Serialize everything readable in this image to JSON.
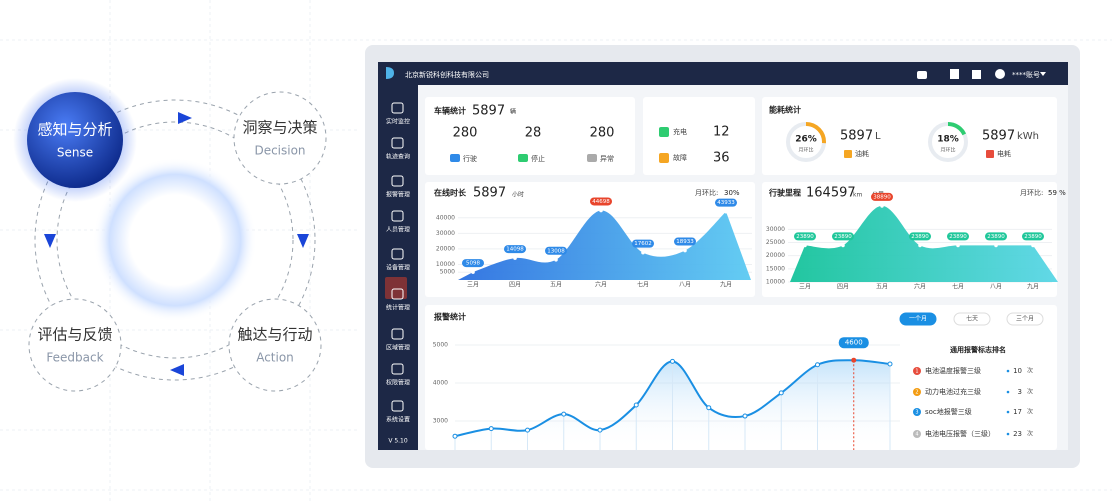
{
  "cycle": {
    "nodes": [
      {
        "label": "感知与分析",
        "sub": "Sense"
      },
      {
        "label": "洞察与决策",
        "sub": "Decision"
      },
      {
        "label": "评估与反馈",
        "sub": "Feedback"
      },
      {
        "label": "触达与行动",
        "sub": "Action"
      }
    ]
  },
  "app": {
    "company": "北京新锐科创科技有限公司",
    "account": "****账号",
    "sidebar": [
      "实时监控",
      "轨迹查询",
      "报警管理",
      "人员管理",
      "设备管理",
      "统计管理",
      "区域管理",
      "权限管理",
      "系统设置"
    ],
    "version": "V 5.10"
  },
  "vehicle": {
    "title": "车辆统计",
    "total": 5897,
    "unit": "辆",
    "states": [
      {
        "value": 280,
        "label": "行驶"
      },
      {
        "value": 28,
        "label": "停止"
      },
      {
        "value": 280,
        "label": "异常"
      }
    ],
    "others": [
      {
        "label": "充电",
        "value": 12
      },
      {
        "label": "故障",
        "value": 36
      }
    ]
  },
  "energy": {
    "title": "能耗统计",
    "gauges": [
      {
        "value": 26,
        "value_label": "26%",
        "caption": "月环比",
        "amount": 5897,
        "unit": "L",
        "label": "油耗",
        "color": "#f5a623"
      },
      {
        "value": 18,
        "value_label": "18%",
        "caption": "月环比",
        "amount": 5897,
        "unit": "kWh",
        "label": "电耗",
        "color": "#2ecc71"
      }
    ]
  },
  "online": {
    "type": "area",
    "title": "在线时长",
    "total": 5897,
    "unit": "小时",
    "mom_caption": "月环比:",
    "mom": "30%",
    "categories": [
      "三月",
      "四月",
      "五月",
      "六月",
      "七月",
      "八月",
      "九月"
    ],
    "values": [
      5098,
      14098,
      13008,
      44698,
      17602,
      18933,
      43933
    ],
    "ylim": [
      0,
      45000
    ],
    "yticks": [
      5000,
      10000,
      20000,
      30000,
      40000
    ],
    "color": "#2f8ae8"
  },
  "mileage": {
    "type": "area",
    "title": "行驶里程",
    "total": 164597,
    "unit": "km",
    "unit2": "公里",
    "mom_caption": "月环比:",
    "mom": "59 %",
    "categories": [
      "三月",
      "四月",
      "五月",
      "六月",
      "七月",
      "八月",
      "九月"
    ],
    "values": [
      23890,
      23890,
      38890,
      23890,
      23890,
      23890,
      23890
    ],
    "ylim": [
      10000,
      40000
    ],
    "yticks": [
      10000,
      15000,
      20000,
      25000,
      30000
    ],
    "color": "#1fc79a"
  },
  "alarm": {
    "type": "line",
    "title": "报警统计",
    "tabs": [
      "一个月",
      "七天",
      "三个月"
    ],
    "values": [
      2600,
      2800,
      2760,
      3180,
      2760,
      3420,
      4569,
      3350,
      3130,
      3740,
      4480,
      4600,
      4500
    ],
    "ylim": [
      2500,
      5200
    ],
    "yticks": [
      3000,
      4000,
      5000
    ],
    "color": "#1a8fe3"
  },
  "ranking": {
    "title": "通用报警标志排名",
    "items": [
      {
        "rank": 1,
        "label": "电池温度报警三级",
        "count": 10,
        "unit": "次",
        "color": "#e74c3c"
      },
      {
        "rank": 2,
        "label": "动力电池过充三级",
        "count": 3,
        "unit": "次",
        "color": "#f39c12"
      },
      {
        "rank": 3,
        "label": "soc地报警三级",
        "count": 17,
        "unit": "次",
        "color": "#1a8fe3"
      },
      {
        "rank": 4,
        "label": "电池电压报警（三级）",
        "count": 23,
        "unit": "次",
        "color": "#bbbbbb"
      }
    ]
  }
}
